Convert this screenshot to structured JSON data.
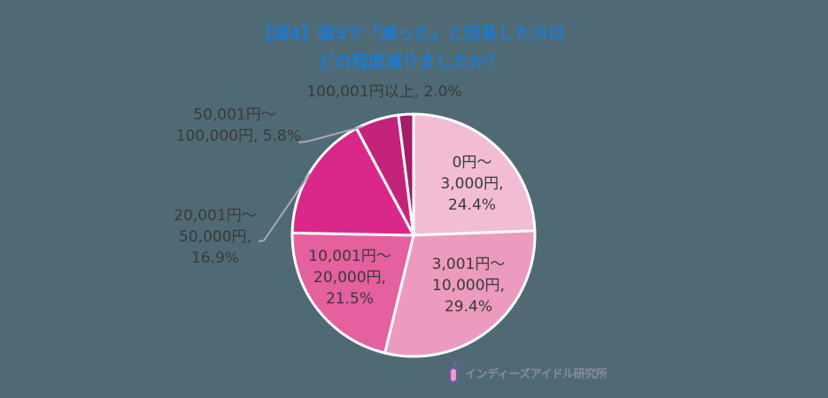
{
  "title": {
    "line1": "【図4】図3で「減った」と回答した方は",
    "line2": "どの程度減りましたか？",
    "color": "#1E7BD0"
  },
  "background": "#4F6A74",
  "labels": [
    {
      "lines": [
        "0円～",
        "3,000円,",
        "24.4%"
      ]
    },
    {
      "lines": [
        "3,001円～",
        "10,000円,",
        "29.4%"
      ]
    },
    {
      "lines": [
        "10,001円～",
        "20,000円,",
        "21.5%"
      ]
    },
    {
      "lines": [
        "20,001円～",
        "50,000円,",
        "16.9%"
      ]
    },
    {
      "lines": [
        "50,001円～",
        "100,000円, 5.8%"
      ]
    },
    {
      "lines": [
        "100,001円以上, 2.0%"
      ]
    }
  ],
  "logo": {
    "text": "インディーズアイドル研究所",
    "icon": "idol-lab-logo-icon"
  },
  "chart_data": {
    "type": "pie",
    "title": "【図4】図3で「減った」と回答した方はどの程度減りましたか？",
    "start_angle": "12 o'clock",
    "direction": "clockwise",
    "categories": [
      "0円～3,000円",
      "3,001円～10,000円",
      "10,001円～20,000円",
      "20,001円～50,000円",
      "50,001円～100,000円",
      "100,001円以上"
    ],
    "values": [
      24.4,
      29.4,
      21.5,
      16.9,
      5.8,
      2.0
    ],
    "unit": "%",
    "colors": [
      "#F2BDD4",
      "#EC9ABE",
      "#E4609F",
      "#D9288A",
      "#C4237B",
      "#A41D66"
    ],
    "legend": "none (data labels)"
  }
}
